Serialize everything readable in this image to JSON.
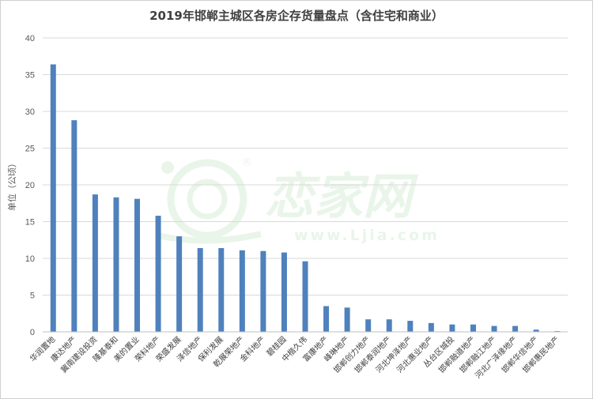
{
  "chart_data": {
    "type": "bar",
    "title": "2019年邯郸主城区各房企存货量盘点（含住宅和商业）",
    "ylabel": "单位（公顷）",
    "xlabel": "",
    "ylim": [
      0,
      40
    ],
    "yticks": [
      0,
      5,
      10,
      15,
      20,
      25,
      30,
      35,
      40
    ],
    "grid": true,
    "legend": "none",
    "bar_color": "#4f81bd",
    "categories": [
      "华润置地",
      "康达地产",
      "冀南建设投资",
      "隆基泰和",
      "美的置业",
      "荣科地产",
      "荣盛发展",
      "泽信地产",
      "保利发展",
      "乾展荣地产",
      "金科地产",
      "碧桂园",
      "中楷久伟",
      "富康地产",
      "峰琳地产",
      "邯郸创力地产",
      "邯郸泰润地产",
      "河北坤泽地产",
      "河北惠业地产",
      "丛台区城投",
      "邯郸融道地产",
      "邯郸融江地产",
      "河北广泽缘地产",
      "邯郸华信地产",
      "邯郸惠民地产"
    ],
    "values": [
      36.4,
      28.8,
      18.7,
      18.3,
      18.1,
      15.8,
      13.0,
      11.4,
      11.4,
      11.1,
      11.0,
      10.8,
      9.6,
      3.5,
      3.3,
      1.7,
      1.7,
      1.5,
      1.2,
      1.0,
      1.0,
      0.8,
      0.8,
      0.3,
      0.1
    ]
  },
  "watermark": {
    "brand": "恋家网",
    "url": "www.Ljia.com",
    "registered": "®"
  }
}
